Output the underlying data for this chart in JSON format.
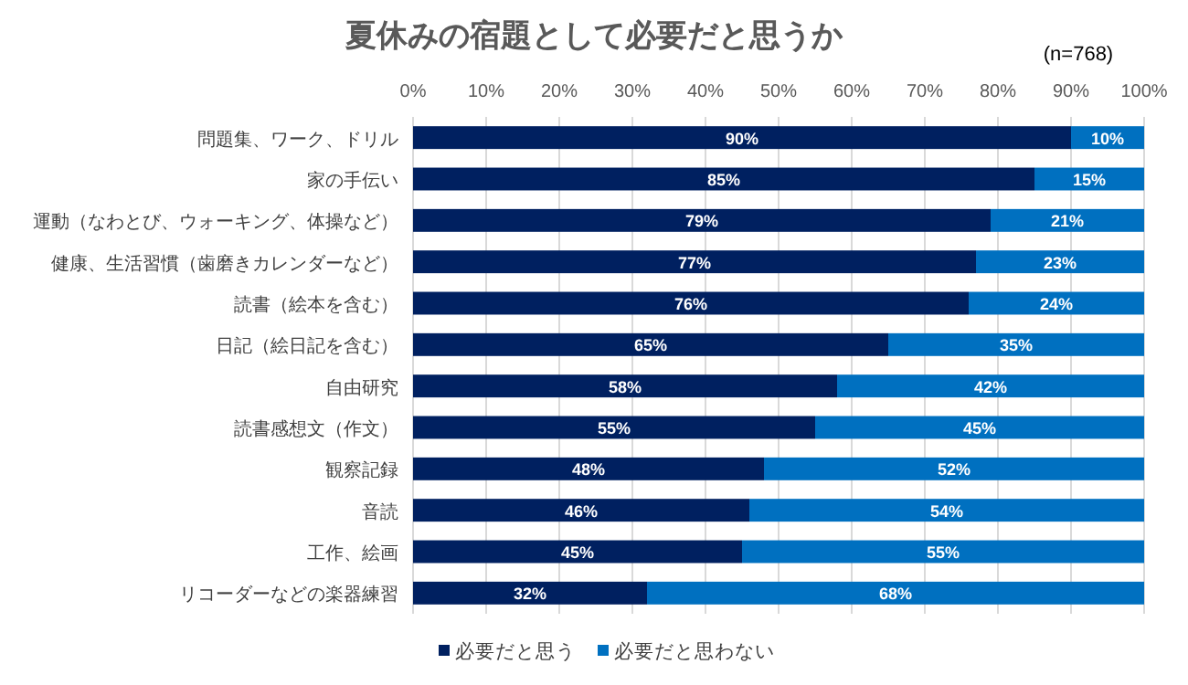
{
  "chart_data": {
    "type": "bar",
    "orientation": "horizontal",
    "stacked": true,
    "title": "夏休みの宿題として必要だと思うか",
    "annotations": [
      "(n=768)"
    ],
    "categories": [
      "問題集、ワーク、ドリル",
      "家の手伝い",
      "運動（なわとび、ウォーキング、体操など）",
      "健康、生活習慣（歯磨きカレンダーなど）",
      "読書（絵本を含む）",
      "日記（絵日記を含む）",
      "自由研究",
      "読書感想文（作文）",
      "観察記録",
      "音読",
      "工作、絵画",
      "リコーダーなどの楽器練習"
    ],
    "series": [
      {
        "name": "必要だと思う",
        "color": "#002060",
        "values": [
          90,
          85,
          79,
          77,
          76,
          65,
          58,
          55,
          48,
          46,
          45,
          32
        ],
        "value_labels": [
          "90%",
          "85%",
          "79%",
          "77%",
          "76%",
          "65%",
          "58%",
          "55%",
          "48%",
          "46%",
          "45%",
          "32%"
        ]
      },
      {
        "name": "必要だと思わない",
        "color": "#0070c0",
        "values": [
          10,
          15,
          21,
          23,
          24,
          35,
          42,
          45,
          52,
          54,
          55,
          68
        ],
        "value_labels": [
          "10%",
          "15%",
          "21%",
          "23%",
          "24%",
          "35%",
          "42%",
          "45%",
          "52%",
          "54%",
          "55%",
          "68%"
        ]
      }
    ],
    "xlim": [
      0,
      100
    ],
    "xticks": [
      {
        "value": 0,
        "label": "0%"
      },
      {
        "value": 10,
        "label": "10%"
      },
      {
        "value": 20,
        "label": "20%"
      },
      {
        "value": 30,
        "label": "30%"
      },
      {
        "value": 40,
        "label": "40%"
      },
      {
        "value": 50,
        "label": "50%"
      },
      {
        "value": 60,
        "label": "60%"
      },
      {
        "value": 70,
        "label": "70%"
      },
      {
        "value": 80,
        "label": "80%"
      },
      {
        "value": 90,
        "label": "90%"
      },
      {
        "value": 100,
        "label": "100%"
      }
    ],
    "grid": "x",
    "legend": "bottom"
  }
}
